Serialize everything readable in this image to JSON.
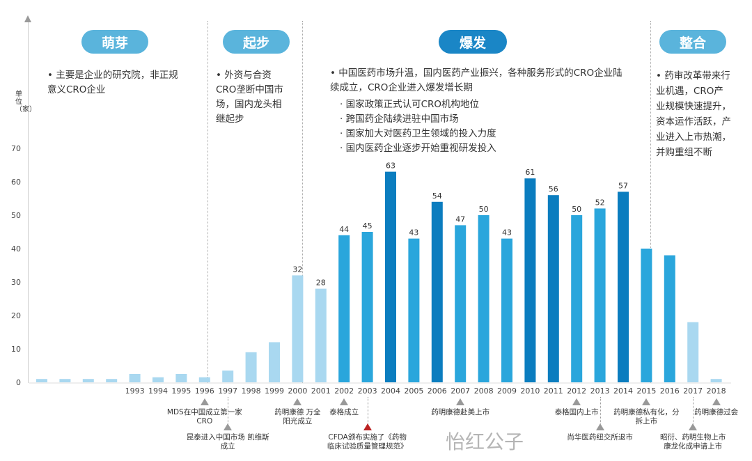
{
  "phases": [
    {
      "label": "萌芽"
    },
    {
      "label": "起步"
    },
    {
      "label": "爆发"
    },
    {
      "label": "整合"
    }
  ],
  "phase_text": {
    "mengya": "• 主要是企业的研究院，非正规意义CRO企业",
    "qibu": "• 外资与合资CRO垄断中国市场，国内龙头相继起步",
    "baofa_main": "• 中国医药市场升温，国内医药产业振兴，各种服务形式的CRO企业陆续成立，CRO企业进入爆发增长期",
    "baofa_items": [
      "· 国家政策正式认可CRO机构地位",
      "· 跨国药企陆续进驻中国市场",
      "· 国家加大对医药卫生领域的投入力度",
      "· 国内医药企业逐步开始重视研发投入"
    ],
    "zhenghe": "• 药审改革带来行业机遇，CRO产业规模快速提升，资本运作活跃，产业进入上市热潮，并购重组不断"
  },
  "annotations": [
    {
      "text": "MDS在中国成立第一家CRO",
      "year": "1996"
    },
    {
      "text": "昆泰进入中国市场 凯维斯成立",
      "year": "1997"
    },
    {
      "text": "药明康德 万全阳光成立",
      "year": "2000"
    },
    {
      "text": "泰格成立",
      "year": "2002"
    },
    {
      "text": "CFDA颁布实施了《药物临床试验质量管理规范》",
      "year": "2003"
    },
    {
      "text": "药明康德赴美上市",
      "year": "2007"
    },
    {
      "text": "泰格国内上市",
      "year": "2012"
    },
    {
      "text": "尚华医药纽交所退市",
      "year": "2013"
    },
    {
      "text": "药明康德私有化，分拆上市",
      "year": "2015"
    },
    {
      "text": "昭衍、药明生物上市 康龙化成申请上市",
      "year": "2017"
    },
    {
      "text": "药明康德过会",
      "year": "2018"
    }
  ],
  "watermark": "怡红公子",
  "colors": {
    "light": "#a9d8f0",
    "mid": "#2aa6dc",
    "dark": "#0b7dbf",
    "pill": "#5ab4dc",
    "pill_dark": "#1a86c6"
  },
  "chart_data": {
    "type": "bar",
    "ylabel": "单位（家）",
    "ylim": [
      0,
      70
    ],
    "yticks": [
      "0",
      "10",
      "20",
      "30",
      "40",
      "50",
      "60",
      "70"
    ],
    "categories": [
      "",
      "",
      "",
      "",
      "1993",
      "1994",
      "1995",
      "1996",
      "1997",
      "1998",
      "1999",
      "2000",
      "2001",
      "2002",
      "2003",
      "2004",
      "2005",
      "2006",
      "2007",
      "2008",
      "2009",
      "2010",
      "2011",
      "2012",
      "2013",
      "2014",
      "2015",
      "2016",
      "2017",
      "2018"
    ],
    "values": [
      1,
      1,
      1,
      1,
      2.5,
      1.5,
      2.5,
      1.5,
      3.5,
      9,
      12,
      32,
      28,
      44,
      45,
      63,
      43,
      54,
      47,
      50,
      43,
      61,
      56,
      50,
      52,
      57,
      40,
      38,
      18,
      1
    ],
    "labels": [
      "",
      "",
      "",
      "",
      "",
      "",
      "",
      "",
      "",
      "",
      "",
      "32",
      "28",
      "44",
      "45",
      "63",
      "43",
      "54",
      "47",
      "50",
      "43",
      "61",
      "56",
      "50",
      "52",
      "57",
      "",
      "",
      "",
      ""
    ],
    "shade": [
      "light",
      "light",
      "light",
      "light",
      "light",
      "light",
      "light",
      "light",
      "light",
      "light",
      "light",
      "light",
      "light",
      "mid",
      "mid",
      "dark",
      "mid",
      "dark",
      "mid",
      "mid",
      "mid",
      "dark",
      "dark",
      "mid",
      "mid",
      "dark",
      "mid",
      "mid",
      "light",
      "light"
    ]
  }
}
